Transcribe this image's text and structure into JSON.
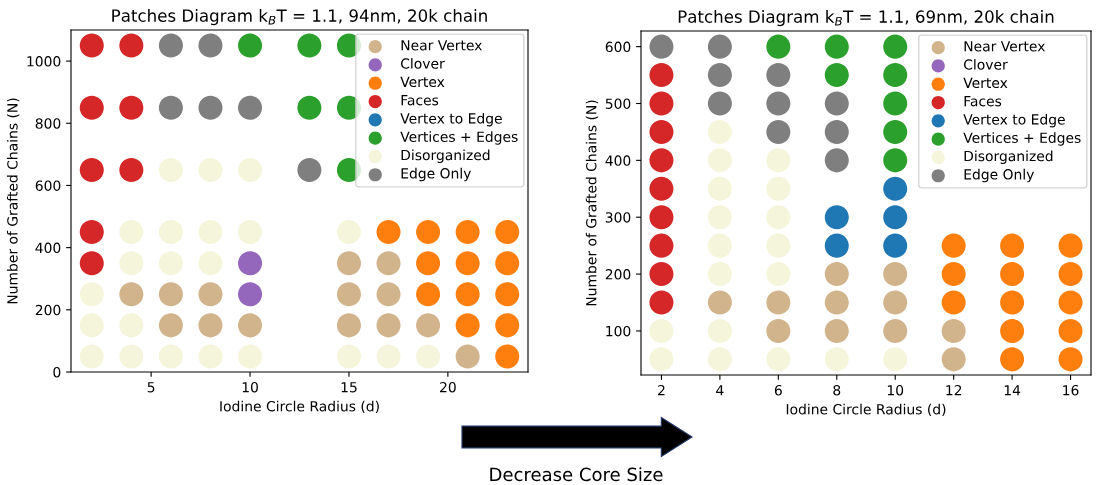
{
  "chart_data": [
    {
      "type": "scatter",
      "title": "Patches Diagram k$_{B}$T = 1.1, 94nm, 20k chain",
      "xlabel": "Iodine Circle Radius (d)",
      "ylabel": "Number of Grafted Chains (N)",
      "xlim": [
        0.95,
        24.05
      ],
      "ylim": [
        0,
        1100
      ],
      "xticks": [
        5,
        10,
        15,
        20
      ],
      "yticks": [
        0,
        200,
        400,
        600,
        800,
        1000
      ],
      "marker": "circle",
      "legend": "top right",
      "grid": false,
      "series": [
        {
          "name": "Near Vertex",
          "color": "#d2b48c",
          "x": [
            15,
            17,
            4,
            6,
            8,
            15,
            17,
            6,
            8,
            10,
            15,
            17,
            19,
            21
          ],
          "values": [
            350,
            350,
            250,
            250,
            250,
            250,
            250,
            150,
            150,
            150,
            150,
            150,
            150,
            50
          ]
        },
        {
          "name": "Clover",
          "color": "#9467bd",
          "x": [
            10,
            10
          ],
          "values": [
            350,
            250
          ]
        },
        {
          "name": "Vertex",
          "color": "#ff7f0e",
          "x": [
            17,
            19,
            21,
            23,
            19,
            21,
            23,
            19,
            21,
            23,
            21,
            23,
            23
          ],
          "values": [
            450,
            450,
            450,
            450,
            350,
            350,
            350,
            250,
            250,
            250,
            150,
            150,
            50
          ]
        },
        {
          "name": "Faces",
          "color": "#d62728",
          "x": [
            2,
            4,
            2,
            4,
            2,
            4,
            2,
            2
          ],
          "values": [
            1050,
            1050,
            850,
            850,
            650,
            650,
            450,
            350
          ]
        },
        {
          "name": "Vertex to Edge",
          "color": "#1f77b4"
        },
        {
          "name": "Vertices + Edges",
          "color": "#2ca02c",
          "x": [
            10,
            13,
            15,
            13,
            15,
            15
          ],
          "values": [
            1050,
            1050,
            1050,
            850,
            850,
            650
          ]
        },
        {
          "name": "Disorganized",
          "color": "#f5f5dc",
          "x": [
            6,
            8,
            10,
            4,
            6,
            8,
            10,
            15,
            4,
            6,
            8,
            2,
            2,
            4,
            2,
            4,
            6,
            8,
            10,
            15,
            17,
            19
          ],
          "values": [
            650,
            650,
            650,
            450,
            450,
            450,
            450,
            450,
            350,
            350,
            350,
            250,
            150,
            150,
            50,
            50,
            50,
            50,
            50,
            50,
            50,
            50
          ]
        },
        {
          "name": "Edge Only",
          "color": "#7f7f7f",
          "x": [
            6,
            8,
            6,
            8,
            10,
            13
          ],
          "values": [
            1050,
            1050,
            850,
            850,
            850,
            650
          ]
        }
      ]
    },
    {
      "type": "scatter",
      "title": "Patches Diagram k$_{B}$T = 1.1, 69nm, 20k chain",
      "xlabel": "Iodine Circle Radius (d)",
      "ylabel": "Number of Grafted Chains (N)",
      "xlim": [
        1.3,
        16.7
      ],
      "ylim": [
        22.5,
        627.5
      ],
      "xticks": [
        2,
        4,
        6,
        8,
        10,
        12,
        14,
        16
      ],
      "yticks": [
        100,
        200,
        300,
        400,
        500,
        600
      ],
      "marker": "circle",
      "legend": "top right",
      "grid": false,
      "annotations": [
        "Decrease Core Size"
      ],
      "series": [
        {
          "name": "Near Vertex",
          "color": "#d2b48c",
          "x": [
            4,
            6,
            6,
            8,
            8,
            8,
            10,
            10,
            10,
            12,
            12
          ],
          "values": [
            150,
            150,
            100,
            200,
            150,
            100,
            200,
            150,
            100,
            100,
            50
          ]
        },
        {
          "name": "Clover",
          "color": "#9467bd"
        },
        {
          "name": "Vertex",
          "color": "#ff7f0e",
          "x": [
            12,
            12,
            12,
            14,
            14,
            14,
            14,
            14,
            16,
            16,
            16,
            16,
            16
          ],
          "values": [
            250,
            200,
            150,
            250,
            200,
            150,
            100,
            50,
            250,
            200,
            150,
            100,
            50
          ]
        },
        {
          "name": "Faces",
          "color": "#d62728",
          "x": [
            2,
            2,
            2,
            2,
            2,
            2,
            2,
            2,
            2
          ],
          "values": [
            550,
            500,
            450,
            400,
            350,
            300,
            250,
            200,
            150
          ]
        },
        {
          "name": "Vertex to Edge",
          "color": "#1f77b4",
          "x": [
            8,
            8,
            10,
            10,
            10
          ],
          "values": [
            300,
            250,
            350,
            300,
            250
          ]
        },
        {
          "name": "Vertices + Edges",
          "color": "#2ca02c",
          "x": [
            6,
            8,
            8,
            10,
            10,
            10,
            10,
            10
          ],
          "values": [
            600,
            600,
            550,
            600,
            550,
            500,
            450,
            400
          ]
        },
        {
          "name": "Disorganized",
          "color": "#f5f5dc",
          "x": [
            2,
            2,
            4,
            4,
            4,
            4,
            4,
            4,
            4,
            4,
            6,
            6,
            6,
            6,
            6,
            6,
            8,
            10
          ],
          "values": [
            100,
            50,
            450,
            400,
            350,
            300,
            250,
            200,
            100,
            50,
            400,
            350,
            300,
            250,
            200,
            50,
            50,
            50
          ]
        },
        {
          "name": "Edge Only",
          "color": "#7f7f7f",
          "x": [
            2,
            4,
            4,
            4,
            6,
            6,
            6,
            8,
            8,
            8
          ],
          "values": [
            600,
            600,
            550,
            500,
            550,
            500,
            450,
            500,
            450,
            400
          ]
        }
      ]
    }
  ]
}
